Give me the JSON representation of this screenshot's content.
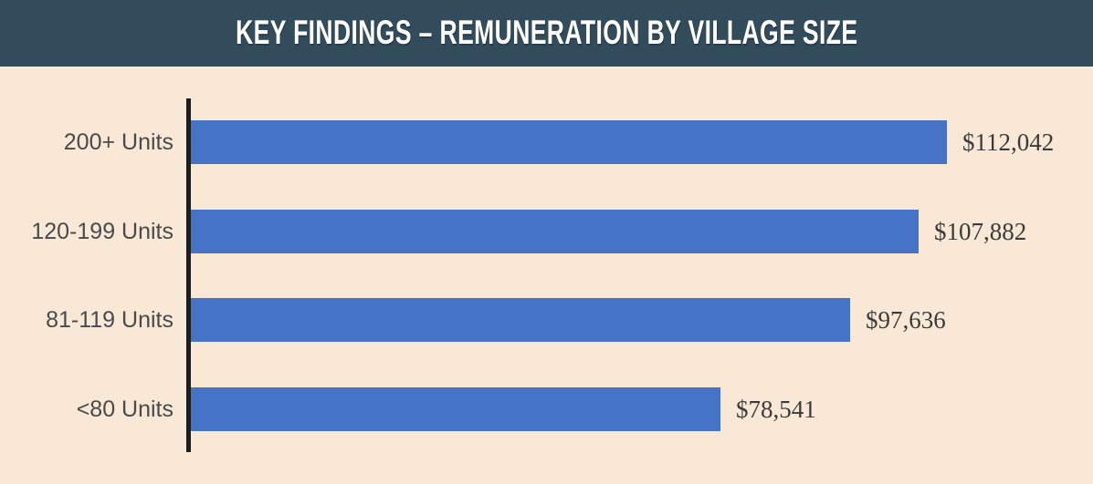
{
  "header": {
    "title": "KEY FINDINGS – REMUNERATION BY VILLAGE SIZE",
    "background_color": "#334c5c",
    "text_color": "#ffffff"
  },
  "chart_data": {
    "type": "bar",
    "orientation": "horizontal",
    "title": "KEY FINDINGS – REMUNERATION BY VILLAGE SIZE",
    "categories": [
      "200+ Units",
      "120-199 Units",
      "81-119 Units",
      "<80 Units"
    ],
    "values": [
      112042,
      107882,
      97636,
      78541
    ],
    "value_labels": [
      "$112,042",
      "$107,882",
      "$97,636",
      "$78,541"
    ],
    "xlabel": "",
    "ylabel": "",
    "xlim": [
      0,
      120000
    ],
    "grid": false,
    "legend": false,
    "bar_color": "#4573c5",
    "background_color": "#fae8d7",
    "axis_color": "#1c1c1c",
    "label_color": "#4a4a4a",
    "value_color": "#3a3a3a"
  }
}
